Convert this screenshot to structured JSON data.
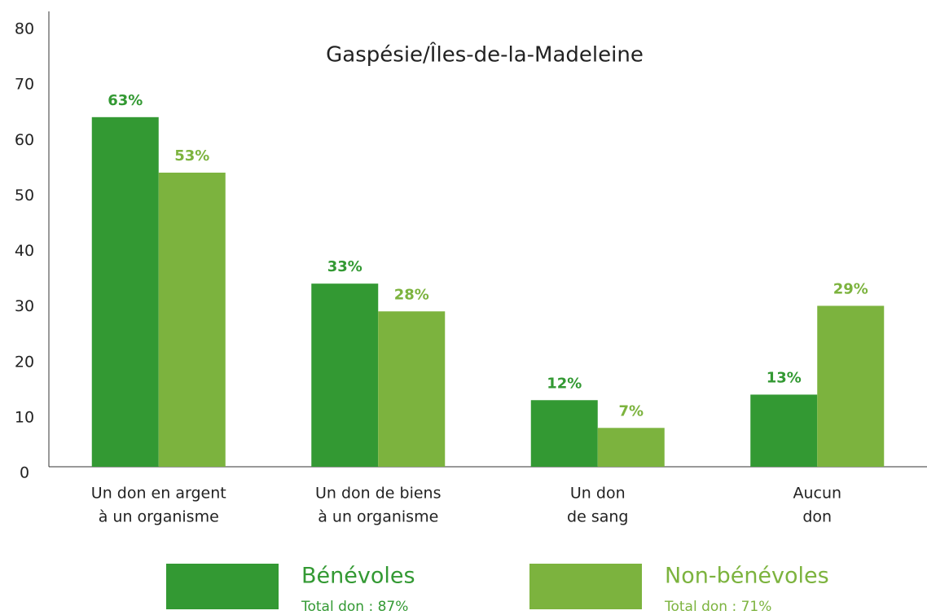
{
  "chart_data": {
    "type": "bar",
    "title": "Gaspésie/Îles-de-la-Madeleine",
    "categories": [
      [
        "Un don en argent",
        "à un organisme"
      ],
      [
        "Un don de biens",
        "à un organisme"
      ],
      [
        "Un don",
        "de sang"
      ],
      [
        "Aucun",
        "don"
      ]
    ],
    "series": [
      {
        "name": "Bénévoles",
        "color": "#339933",
        "values": [
          63,
          33,
          12,
          13
        ],
        "value_labels": [
          "63%",
          "33%",
          "12%",
          "13%"
        ],
        "total_label": "Total don : 87%"
      },
      {
        "name": "Non-bénévoles",
        "color": "#7cb33e",
        "values": [
          53,
          28,
          7,
          29
        ],
        "value_labels": [
          "53%",
          "28%",
          "7%",
          "29%"
        ],
        "total_label": "Total don : 71%"
      }
    ],
    "ylim": [
      0,
      80
    ],
    "yticks": [
      0,
      10,
      20,
      30,
      40,
      50,
      60,
      70,
      80
    ],
    "grid": false
  }
}
